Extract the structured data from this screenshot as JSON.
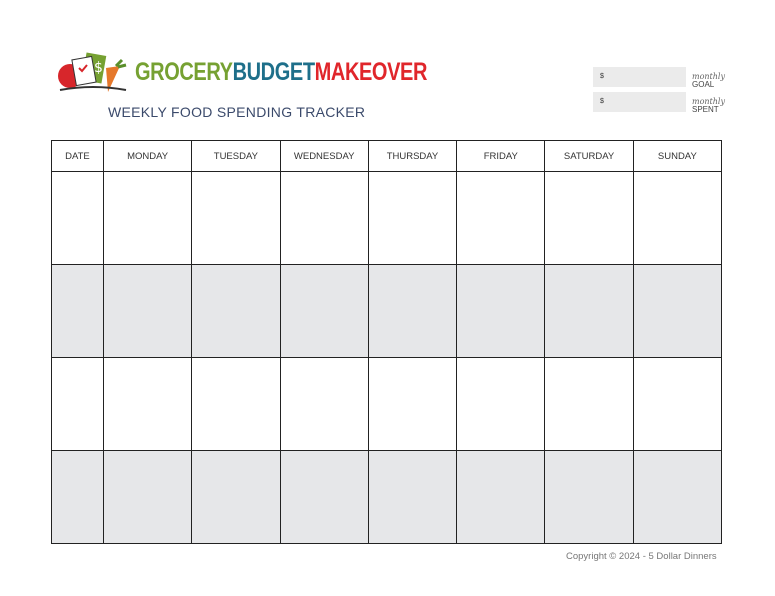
{
  "brand": {
    "word1": "GROCERY",
    "word2": "BUDGET",
    "word3": "MAKEOVER",
    "colors": {
      "grocery": "#76a132",
      "budget": "#1e6f8a",
      "makeover": "#e0262b"
    }
  },
  "subtitle": "WEEKLY  FOOD SPENDING TRACKER",
  "summary": {
    "goal": {
      "currency": "$",
      "script": "monthly",
      "label": "GOAL"
    },
    "spent": {
      "currency": "$",
      "script": "monthly",
      "label": "SPENT"
    }
  },
  "table": {
    "headers": [
      "DATE",
      "MONDAY",
      "TUESDAY",
      "WEDNESDAY",
      "THURSDAY",
      "FRIDAY",
      "SATURDAY",
      "SUNDAY"
    ],
    "rows": 4,
    "shade_color": "#e6e7e9"
  },
  "footer": "Copyright © 2024 - 5 Dollar Dinners"
}
